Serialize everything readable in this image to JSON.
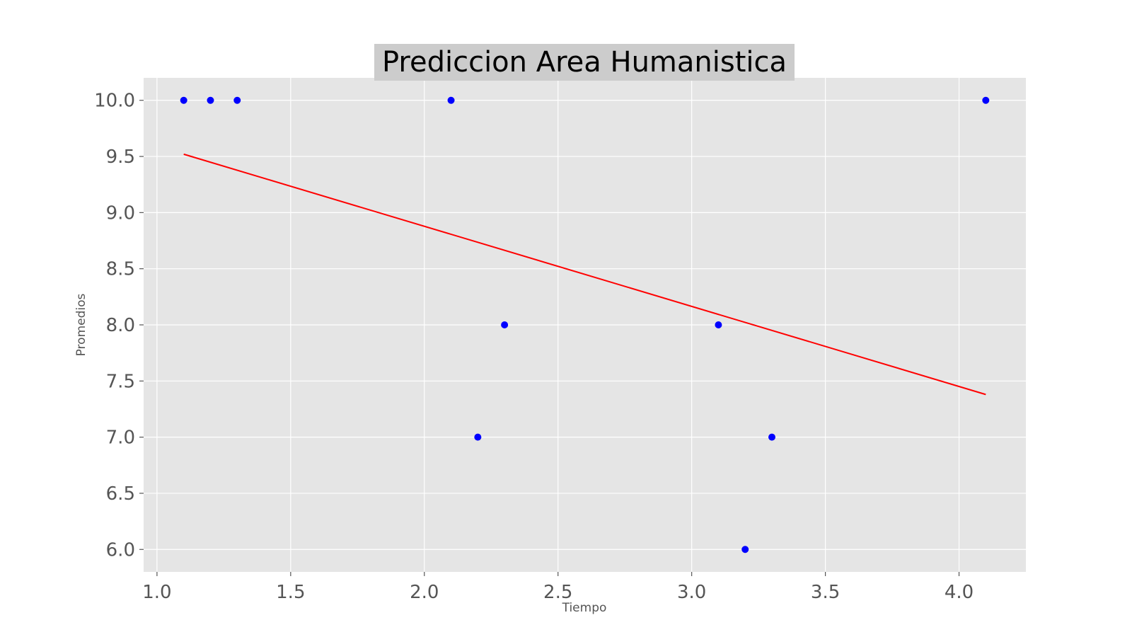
{
  "chart_data": {
    "type": "scatter",
    "title": "Prediccion Area Humanistica",
    "xlabel": "Tiempo",
    "ylabel": "Promedios",
    "xlim": [
      0.95,
      4.25
    ],
    "ylim": [
      5.8,
      10.2
    ],
    "xticks": [
      1.0,
      1.5,
      2.0,
      2.5,
      3.0,
      3.5,
      4.0
    ],
    "xtick_labels": [
      "1.0",
      "1.5",
      "2.0",
      "2.5",
      "3.0",
      "3.5",
      "4.0"
    ],
    "yticks": [
      6.0,
      6.5,
      7.0,
      7.5,
      8.0,
      8.5,
      9.0,
      9.5,
      10.0
    ],
    "ytick_labels": [
      "6.0",
      "6.5",
      "7.0",
      "7.5",
      "8.0",
      "8.5",
      "9.0",
      "9.5",
      "10.0"
    ],
    "grid": true,
    "series": [
      {
        "type": "scatter",
        "color": "#0000ff",
        "x": [
          1.1,
          1.2,
          1.3,
          2.1,
          2.2,
          2.3,
          3.1,
          3.2,
          3.3,
          4.1
        ],
        "y": [
          10.0,
          10.0,
          10.0,
          10.0,
          7.0,
          8.0,
          8.0,
          6.0,
          7.0,
          10.0
        ]
      },
      {
        "type": "line",
        "color": "#ff0000",
        "x": [
          1.1,
          4.1
        ],
        "y": [
          9.52,
          7.38
        ]
      }
    ],
    "colors": {
      "plot_background": "#e5e5e5",
      "grid": "#ffffff",
      "title_background": "#cccccc"
    }
  }
}
